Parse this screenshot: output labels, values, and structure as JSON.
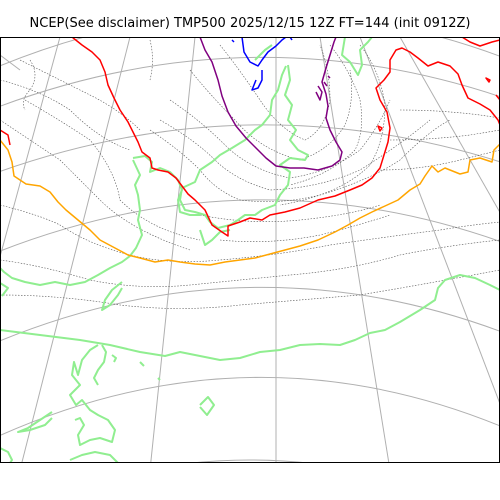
{
  "title": "NCEP(See disclaimer) TMP500 2025/12/15 12Z FT=144 (init 0912Z)",
  "colors": {
    "graticule": "#b0b0b0",
    "coastline": "#90ee90",
    "isotherm_red": "#ff0000",
    "isotherm_orange": "#ffa500",
    "isotherm_purple": "#800080",
    "isotherm_blue": "#0000ff",
    "contour_dotted": "#555555",
    "frame": "#000000"
  },
  "map": {
    "projection": "polar stereographic",
    "layers": [
      "graticule",
      "coastline",
      "dotted-contours",
      "isotherms"
    ]
  }
}
